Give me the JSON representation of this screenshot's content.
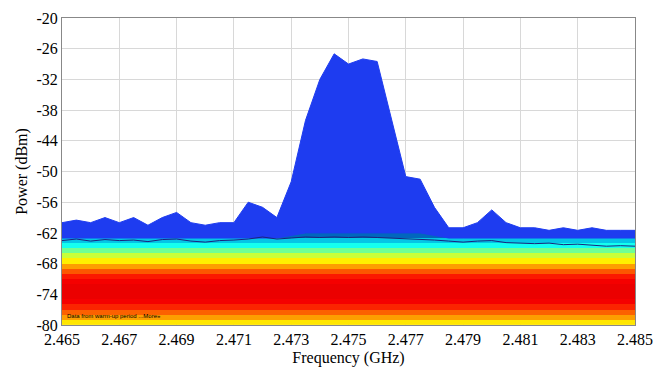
{
  "chart_data": {
    "type": "line",
    "x_label": "Frequency (GHz)",
    "y_label": "Power (dBm)",
    "x": [
      2.465,
      2.4655,
      2.466,
      2.4665,
      2.467,
      2.4675,
      2.468,
      2.4685,
      2.469,
      2.4695,
      2.47,
      2.4705,
      2.471,
      2.4715,
      2.472,
      2.4725,
      2.473,
      2.4735,
      2.474,
      2.4745,
      2.475,
      2.4755,
      2.476,
      2.4765,
      2.477,
      2.4775,
      2.478,
      2.4785,
      2.479,
      2.4795,
      2.48,
      2.4805,
      2.481,
      2.4815,
      2.482,
      2.4825,
      2.483,
      2.4835,
      2.484,
      2.4845,
      2.485
    ],
    "series": [
      {
        "type": "line",
        "color": "#1e3cf0",
        "values": [
          -63,
          -63,
          -63,
          -63,
          -63,
          -63,
          -63,
          -63,
          -63,
          -63,
          -63,
          -63,
          -63,
          -63,
          -63,
          -63,
          -62.5,
          -62,
          -62,
          -62,
          -62,
          -62,
          -62,
          -62,
          -62,
          -62,
          -62.5,
          -63,
          -63,
          -63,
          -63,
          -63,
          -63,
          -63,
          -63,
          -63,
          -63,
          -63,
          -63,
          -63,
          -63
        ]
      },
      {
        "type": "area",
        "color": "#1e3cf0",
        "values": [
          -60,
          -59.5,
          -60,
          -59,
          -60,
          -59,
          -60.5,
          -59,
          -58,
          -60,
          -60.5,
          -60,
          -60,
          -56,
          -57,
          -59,
          -52,
          -40,
          -32,
          -27,
          -29,
          -28,
          -28.5,
          -40,
          -51,
          -51.5,
          -57,
          -61,
          -61,
          -60,
          -57.5,
          -60,
          -61,
          -61,
          -61.5,
          -61,
          -61.5,
          -61,
          -61.5,
          -61.5,
          -61.5
        ]
      },
      {
        "type": "line",
        "color": "#1a237e",
        "values": [
          -63.5,
          -63.2,
          -63.6,
          -63.3,
          -63.5,
          -63.4,
          -63.7,
          -63.3,
          -63.2,
          -63.6,
          -63.8,
          -63.5,
          -63.4,
          -63.2,
          -62.8,
          -63.2,
          -63,
          -62.8,
          -62.9,
          -62.8,
          -62.9,
          -62.8,
          -62.9,
          -63,
          -63.1,
          -63.2,
          -63.4,
          -63.6,
          -63.8,
          -63.6,
          -63.5,
          -63.9,
          -64,
          -64.1,
          -64,
          -64.3,
          -64.2,
          -64.4,
          -64.6,
          -64.5,
          -64.6
        ]
      }
    ],
    "cells": {
      "x": [
        2.465,
        2.485
      ],
      "y": [
        -80,
        -79,
        -78,
        -77,
        -76,
        -75,
        -74,
        -73,
        -72,
        -71,
        -70,
        -69,
        -68,
        -67,
        -66,
        -65,
        -64,
        -63,
        -62
      ],
      "z": [
        [
          65
        ],
        [
          72
        ],
        [
          78
        ],
        [
          84
        ],
        [
          88
        ],
        [
          89
        ],
        [
          89
        ],
        [
          89
        ],
        [
          88
        ],
        [
          85
        ],
        [
          79
        ],
        [
          72
        ],
        [
          64
        ],
        [
          57
        ],
        [
          48
        ],
        [
          39
        ],
        [
          30
        ],
        [
          18
        ]
      ],
      "zlim": [
        0,
        100
      ]
    },
    "annotations": [
      {
        "text": "Data from warm-up period ...More»",
        "x": 2.4651,
        "y": -79.3
      }
    ],
    "xlim": [
      2.465,
      2.485
    ],
    "xticks": [
      2.465,
      2.467,
      2.469,
      2.471,
      2.473,
      2.475,
      2.477,
      2.479,
      2.481,
      2.483,
      2.485
    ],
    "ylim": [
      -80,
      -20
    ],
    "yticks": [
      -80,
      -74,
      -68,
      -62,
      -56,
      -50,
      -44,
      -38,
      -32,
      -26,
      -20
    ],
    "grid": true
  }
}
